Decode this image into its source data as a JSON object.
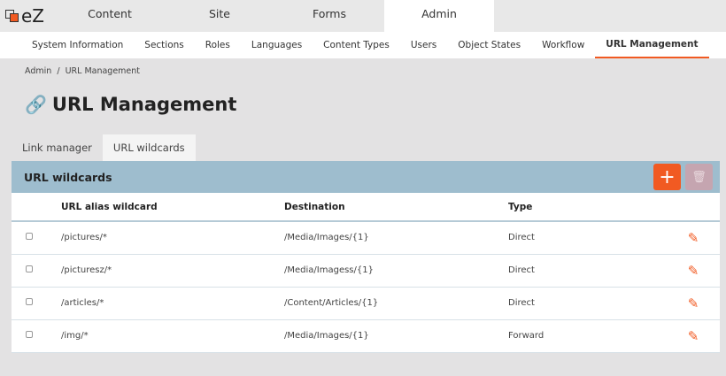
{
  "top": {
    "logo": "eZ",
    "tabs": [
      "Content",
      "Site",
      "Forms",
      "Admin"
    ],
    "active": "Admin"
  },
  "subnav": [
    "System Information",
    "Sections",
    "Roles",
    "Languages",
    "Content Types",
    "Users",
    "Object States",
    "Workflow",
    "URL Management"
  ],
  "breadcrumb": {
    "parent": "Admin",
    "sep": "/",
    "current": "URL Management"
  },
  "page_title": "URL Management",
  "tabs": [
    "Link manager",
    "URL wildcards"
  ],
  "panel": {
    "title": "URL wildcards",
    "add_icon": "+",
    "delete_icon": "trash-icon",
    "columns": [
      "URL alias wildcard",
      "Destination",
      "Type"
    ],
    "rows": [
      {
        "alias": "/pictures/*",
        "dest": "/Media/Images/{1}",
        "type": "Direct"
      },
      {
        "alias": "/picturesz/*",
        "dest": "/Media/Imagess/{1}",
        "type": "Direct"
      },
      {
        "alias": "/articles/*",
        "dest": "/Content/Articles/{1}",
        "type": "Direct"
      },
      {
        "alias": "/img/*",
        "dest": "/Media/Images/{1}",
        "type": "Forward"
      }
    ]
  },
  "colors": {
    "accent": "#f15a22",
    "panel_header": "#9ebdce"
  }
}
